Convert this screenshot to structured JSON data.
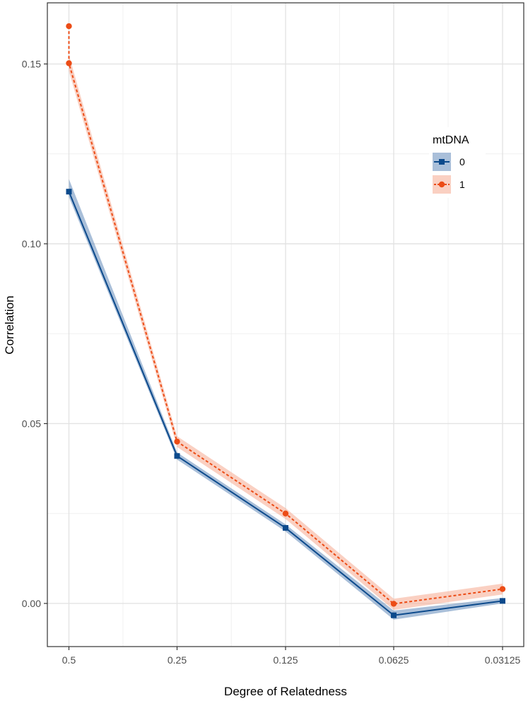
{
  "chart_data": {
    "type": "line",
    "title": "",
    "xlabel": "Degree of Relatedness",
    "ylabel": "Correlation",
    "categories": [
      "0.5",
      "0.25",
      "0.125",
      "0.0625",
      "0.03125"
    ],
    "ylim": [
      -0.012,
      0.167
    ],
    "yticks": [
      0.0,
      0.05,
      0.1,
      0.15
    ],
    "ytick_labels": [
      "0.00",
      "0.05",
      "0.10",
      "0.15"
    ],
    "grid": true,
    "legend": {
      "title": "mtDNA",
      "position": "top-right inside",
      "entries": [
        "0",
        "1"
      ]
    },
    "series": [
      {
        "name": "0",
        "color": "#0c4a8c",
        "ribbon_color": "#6f95bf",
        "marker": "square",
        "linetype": "solid",
        "values": [
          0.1145,
          0.041,
          0.021,
          -0.0033,
          0.0007
        ],
        "ribbon_low": [
          0.113,
          0.04,
          0.02,
          -0.0045,
          0.0
        ],
        "ribbon_high": [
          0.118,
          0.042,
          0.022,
          -0.002,
          0.0015
        ],
        "extra_points": []
      },
      {
        "name": "1",
        "color": "#ec4c16",
        "ribbon_color": "#f7b09a",
        "marker": "circle",
        "linetype": "dashed",
        "values": [
          0.1502,
          0.045,
          0.025,
          -0.0001,
          0.004
        ],
        "ribbon_low": [
          0.148,
          0.0435,
          0.0235,
          -0.0018,
          0.0025
        ],
        "ribbon_high": [
          0.1525,
          0.0465,
          0.0265,
          0.0013,
          0.0055
        ],
        "extra_points": [
          {
            "x_index": 0,
            "y": 0.1605
          }
        ]
      }
    ]
  }
}
